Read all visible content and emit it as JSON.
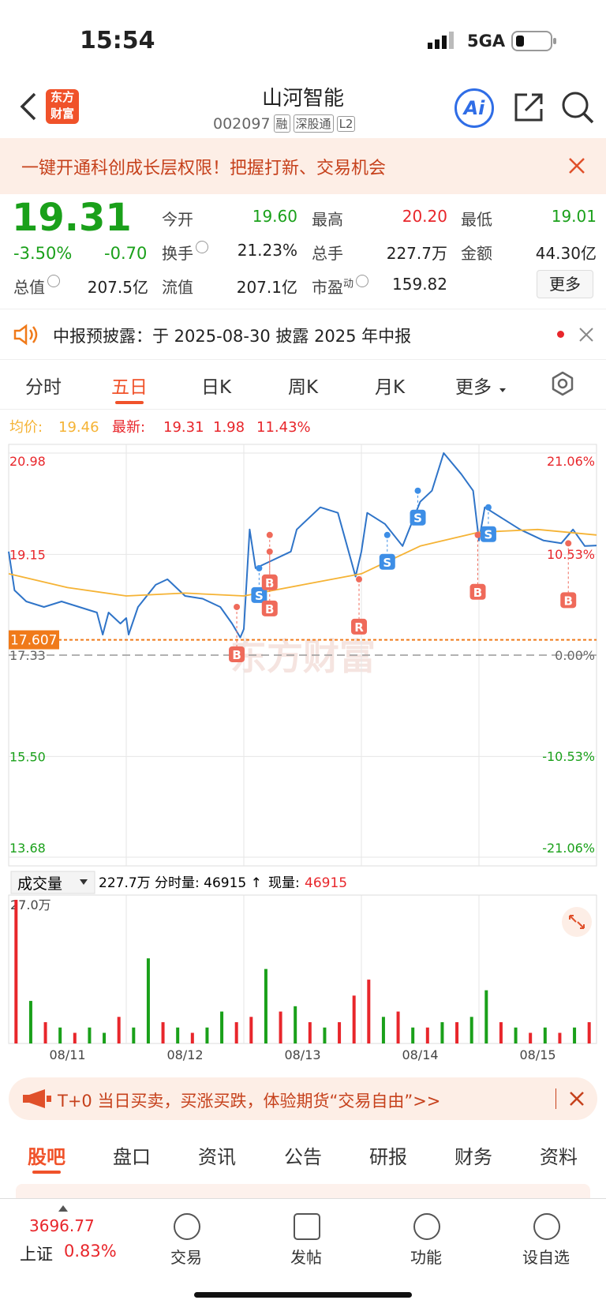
{
  "status": {
    "time": "15:54",
    "network": "5GA"
  },
  "header": {
    "logo": [
      "东方",
      "财富"
    ],
    "title": "山河智能",
    "code": "002097",
    "tags": [
      "融",
      "深股通",
      "L2"
    ],
    "ai": "Ai"
  },
  "banner": "一键开通科创成长层权限！把握打新、交易机会",
  "quote": {
    "price": "19.31",
    "change_pct": "-3.50%",
    "change": "-0.70",
    "fields": [
      {
        "label": "今开",
        "value": "19.60",
        "color": "#1aa01a"
      },
      {
        "label": "最高",
        "value": "20.20",
        "color": "#e8262b"
      },
      {
        "label": "最低",
        "value": "19.01",
        "color": "#1aa01a"
      },
      {
        "label": "换手",
        "value": "21.23%",
        "color": "#222222"
      },
      {
        "label": "总手",
        "value": "227.7万",
        "color": "#222222"
      },
      {
        "label": "金额",
        "value": "44.30亿",
        "color": "#222222"
      },
      {
        "label": "总值",
        "value": "207.5亿",
        "color": "#222222"
      },
      {
        "label": "流值",
        "value": "207.1亿",
        "color": "#222222"
      },
      {
        "label": "市盈",
        "sup": "动",
        "value": "159.82",
        "color": "#222222"
      }
    ],
    "more": "更多"
  },
  "notice": "中报预披露：于 2025-08-30 披露 2025 年中报",
  "tabs": {
    "items": [
      "分时",
      "五日",
      "日K",
      "周K",
      "月K",
      "更多"
    ],
    "active": 1
  },
  "chart_data": {
    "type": "line",
    "summary": {
      "avg_label": "均价:",
      "avg": "19.46",
      "last_label": "最新:",
      "last": "19.31",
      "change": "1.98",
      "change_pct": "11.43%"
    },
    "watermark": "东方财富",
    "xlim": [
      0,
      5
    ],
    "categories": [
      "08/11",
      "08/12",
      "08/13",
      "08/14",
      "08/15"
    ],
    "ylim": [
      13.68,
      20.98
    ],
    "yticks": [
      20.98,
      19.15,
      17.33,
      {
        "value": 15.5,
        "label": "15.50"
      },
      13.68
    ],
    "y2lim": [
      -21.06,
      21.06
    ],
    "y2ticks": [
      {
        "value": 21.06,
        "label": "21.06%"
      },
      {
        "value": 10.53,
        "label": "10.53%"
      },
      {
        "value": 0,
        "label": "0.00%"
      },
      {
        "value": -10.53,
        "label": "-10.53%"
      },
      {
        "value": -21.06,
        "label": "-21.06%"
      }
    ],
    "current_line": {
      "value": 17.607,
      "label": "17.607",
      "color": "#f07a1a"
    },
    "series": [
      {
        "color": "#2f74c8",
        "x": [
          0,
          0.05,
          0.15,
          0.3,
          0.45,
          0.6,
          0.75,
          0.8,
          0.85,
          0.95,
          1.0,
          1.02,
          1.1,
          1.25,
          1.35,
          1.5,
          1.65,
          1.8,
          1.9,
          1.97,
          2.0,
          2.05,
          2.1,
          2.2,
          2.4,
          2.45,
          2.65,
          2.8,
          2.95,
          3.0,
          3.05,
          3.2,
          3.35,
          3.5,
          3.6,
          3.7,
          3.85,
          3.95,
          4.0,
          4.05,
          4.2,
          4.35,
          4.55,
          4.7,
          4.8,
          4.9,
          5.0
        ],
        "values": [
          19.2,
          18.5,
          18.3,
          18.2,
          18.3,
          18.2,
          18.1,
          17.7,
          18.1,
          17.9,
          18.0,
          17.7,
          18.2,
          18.6,
          18.7,
          18.4,
          18.35,
          18.2,
          17.9,
          17.65,
          17.8,
          19.6,
          18.9,
          19.0,
          19.2,
          19.6,
          20.0,
          19.9,
          18.75,
          19.2,
          19.9,
          19.7,
          19.3,
          20.1,
          20.3,
          20.98,
          20.6,
          20.3,
          19.4,
          20.0,
          19.8,
          19.6,
          19.4,
          19.35,
          19.6,
          19.3,
          19.31
        ]
      },
      {
        "color": "#f5b335",
        "x": [
          0,
          0.5,
          1,
          1.5,
          2,
          2.5,
          3,
          3.5,
          4,
          4.5,
          5
        ],
        "values": [
          18.8,
          18.55,
          18.4,
          18.45,
          18.4,
          18.6,
          18.8,
          19.3,
          19.55,
          19.6,
          19.5
        ]
      }
    ],
    "markers": [
      {
        "label": "B",
        "x": 1.94,
        "value": 18.2
      },
      {
        "label": "S",
        "x": 2.13,
        "value": 18.9
      },
      {
        "label": "B",
        "x": 2.22,
        "value": 19.5
      },
      {
        "label": "B",
        "x": 2.22,
        "value": 19.2
      },
      {
        "label": "R",
        "x": 2.98,
        "value": 18.7
      },
      {
        "label": "S",
        "x": 3.22,
        "value": 19.5
      },
      {
        "label": "S",
        "x": 3.48,
        "value": 20.3
      },
      {
        "label": "B",
        "x": 3.99,
        "value": 19.5
      },
      {
        "label": "S",
        "x": 4.08,
        "value": 20.0
      },
      {
        "label": "B",
        "x": 4.76,
        "value": 19.35
      }
    ],
    "volume": {
      "selector": "成交量",
      "total": "227.7万",
      "tick_label": "分时量: 46915 ↑",
      "now_label": "现量:",
      "now": "46915",
      "ylim": [
        0,
        27
      ],
      "yticks": [
        {
          "value": 27,
          "label": "27.0万"
        }
      ],
      "values": [
        27,
        8,
        4,
        3,
        2,
        3,
        2,
        5,
        3,
        16,
        4,
        3,
        2,
        3,
        6,
        4,
        5,
        14,
        6,
        7,
        4,
        3,
        4,
        9,
        12,
        5,
        6,
        3,
        3,
        4,
        4,
        5,
        10,
        4,
        3,
        2,
        3,
        2,
        3,
        4
      ],
      "colors": [
        "#e8262b",
        "#1aa01a",
        "#e8262b",
        "#1aa01a",
        "#e8262b",
        "#1aa01a",
        "#1aa01a",
        "#e8262b",
        "#1aa01a",
        "#1aa01a",
        "#e8262b",
        "#1aa01a",
        "#e8262b",
        "#1aa01a",
        "#1aa01a",
        "#e8262b",
        "#e8262b",
        "#1aa01a",
        "#e8262b",
        "#1aa01a",
        "#e8262b",
        "#1aa01a",
        "#e8262b",
        "#e8262b",
        "#e8262b",
        "#1aa01a",
        "#e8262b",
        "#1aa01a",
        "#e8262b",
        "#1aa01a",
        "#e8262b",
        "#1aa01a",
        "#1aa01a",
        "#e8262b",
        "#1aa01a",
        "#e8262b",
        "#1aa01a",
        "#e8262b",
        "#1aa01a",
        "#e8262b"
      ]
    }
  },
  "promo": "T+0 当日买卖，买涨买跌，体验期货“交易自由”>>",
  "bottom_tabs": {
    "items": [
      "股吧",
      "盘口",
      "资讯",
      "公告",
      "研报",
      "财务",
      "资料"
    ],
    "active": 0
  },
  "nav": {
    "index_value": "3696.77",
    "index_name": "上证",
    "index_change": "0.83%",
    "items": [
      "交易",
      "发帖",
      "功能",
      "设自选"
    ]
  }
}
